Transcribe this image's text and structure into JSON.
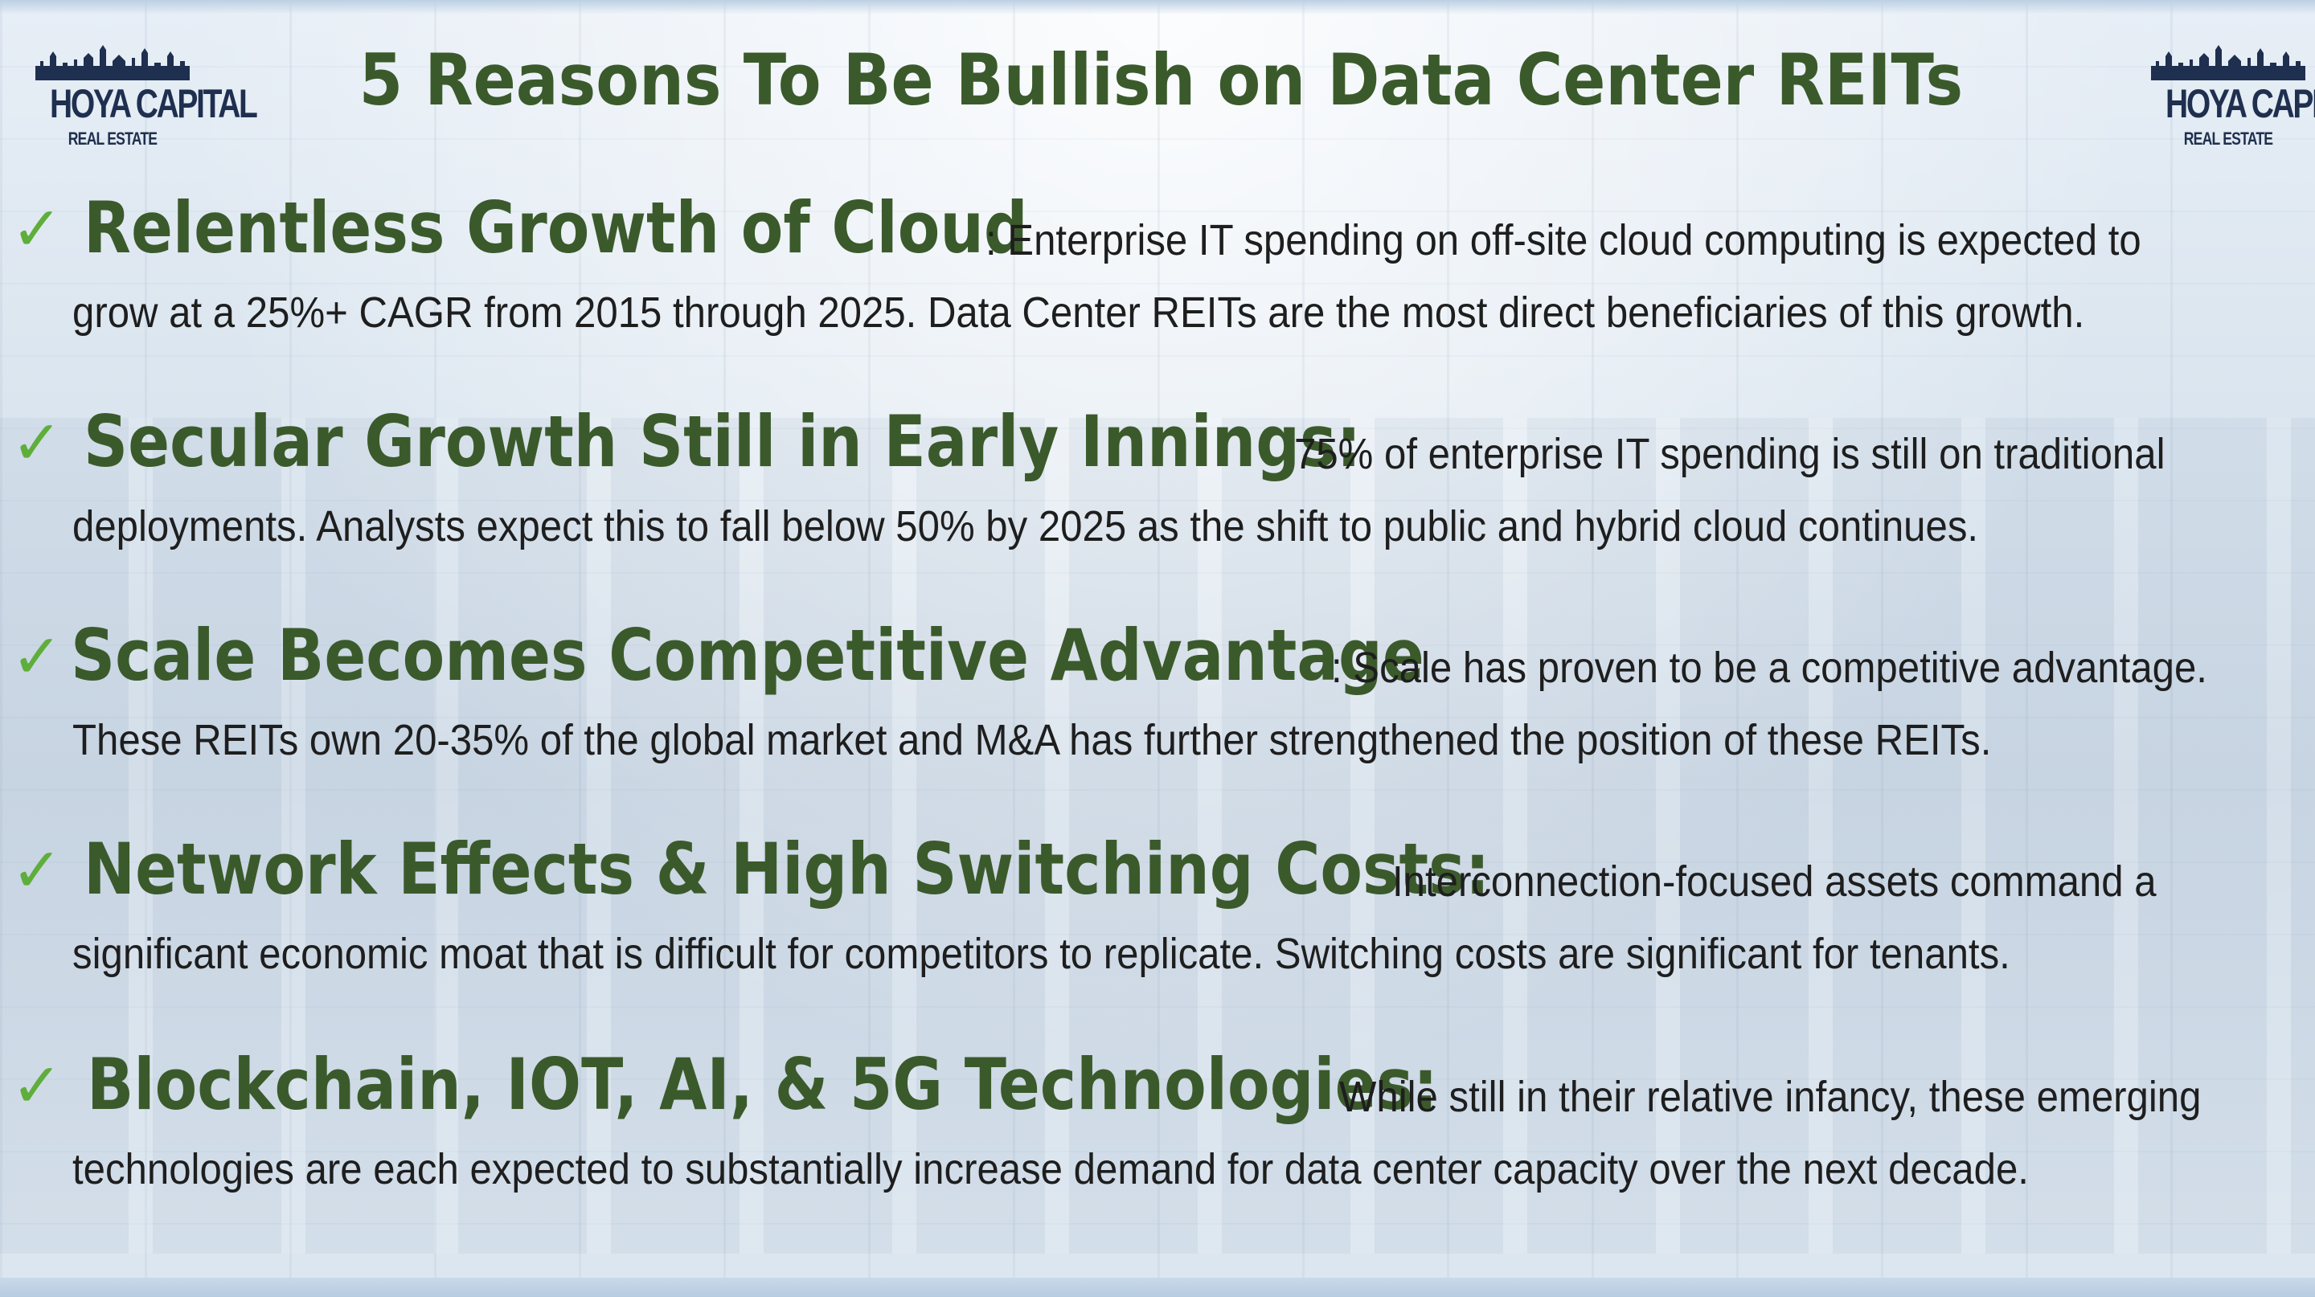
{
  "logo": {
    "name": "HOYA CAPITAL",
    "sub": "REAL ESTATE"
  },
  "title": "5 Reasons To Be Bullish on Data Center REITs",
  "check_glyph": "✓",
  "colors": {
    "heading_green": "#3b5a2b",
    "check_green": "#5fae3b",
    "logo_navy": "#1f2f4f"
  },
  "reasons": [
    {
      "heading": "Relentless Growth of Cloud",
      "lead": ": Enterprise IT spending on off-site cloud computing is expected to",
      "rest": "grow at a 25%+ CAGR from 2015 through 2025. Data Center REITs are the most direct beneficiaries of this growth."
    },
    {
      "heading": "Secular Growth Still in Early Innings:",
      "lead": " 75% of enterprise IT spending is still on traditional",
      "rest": "deployments. Analysts expect this to fall below 50% by 2025 as the shift to public and hybrid cloud continues."
    },
    {
      "heading": "Scale Becomes Competitive Advantage",
      "lead": ": Scale has proven to be a competitive advantage.",
      "rest": "These REITs own 20-35% of the global market and M&A has further strengthened the position of these REITs."
    },
    {
      "heading": "Network Effects & High Switching Costs:",
      "lead": " Interconnection-focused assets command a",
      "rest": "significant economic moat that is difficult for competitors to replicate. Switching costs are significant for tenants."
    },
    {
      "heading": "Blockchain, IOT, AI, & 5G Technologies:",
      "lead": " While still in their relative infancy, these emerging",
      "rest": "technologies are each expected to substantially increase demand for data center capacity over the next decade."
    }
  ]
}
